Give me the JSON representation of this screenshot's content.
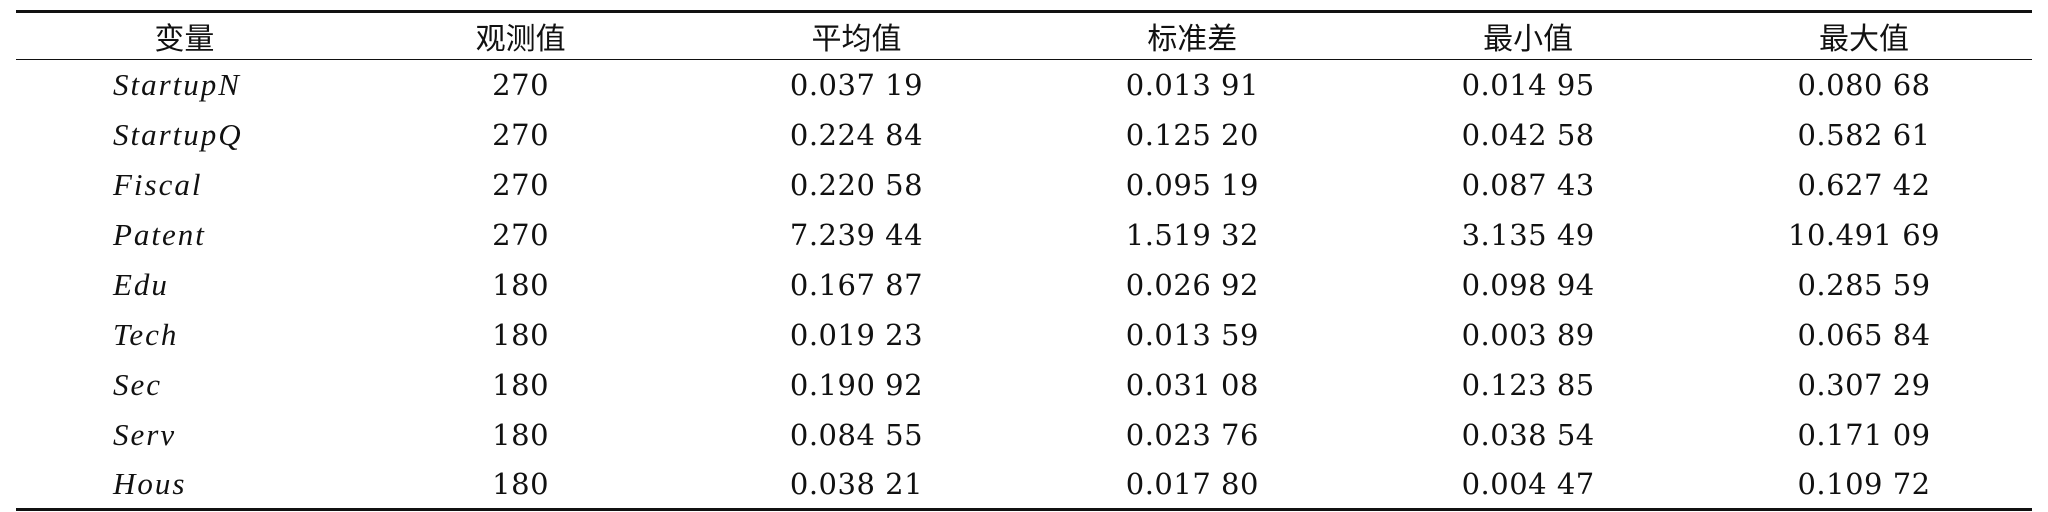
{
  "table": {
    "headers": [
      "变量",
      "观测值",
      "平均值",
      "标准差",
      "最小值",
      "最大值"
    ],
    "rows": [
      {
        "variable": "StartupN",
        "obs": "270",
        "mean": "0.037 19",
        "sd": "0.013 91",
        "min": "0.014 95",
        "max": "0.080 68"
      },
      {
        "variable": "StartupQ",
        "obs": "270",
        "mean": "0.224 84",
        "sd": "0.125 20",
        "min": "0.042 58",
        "max": "0.582 61"
      },
      {
        "variable": "Fiscal",
        "obs": "270",
        "mean": "0.220 58",
        "sd": "0.095 19",
        "min": "0.087 43",
        "max": "0.627 42"
      },
      {
        "variable": "Patent",
        "obs": "270",
        "mean": "7.239 44",
        "sd": "1.519 32",
        "min": "3.135 49",
        "max": "10.491 69"
      },
      {
        "variable": "Edu",
        "obs": "180",
        "mean": "0.167 87",
        "sd": "0.026 92",
        "min": "0.098 94",
        "max": "0.285 59"
      },
      {
        "variable": "Tech",
        "obs": "180",
        "mean": "0.019 23",
        "sd": "0.013 59",
        "min": "0.003 89",
        "max": "0.065 84"
      },
      {
        "variable": "Sec",
        "obs": "180",
        "mean": "0.190 92",
        "sd": "0.031 08",
        "min": "0.123 85",
        "max": "0.307 29"
      },
      {
        "variable": "Serv",
        "obs": "180",
        "mean": "0.084 55",
        "sd": "0.023 76",
        "min": "0.038 54",
        "max": "0.171 09"
      },
      {
        "variable": "Hous",
        "obs": "180",
        "mean": "0.038 21",
        "sd": "0.017 80",
        "min": "0.004 47",
        "max": "0.109 72"
      }
    ]
  }
}
